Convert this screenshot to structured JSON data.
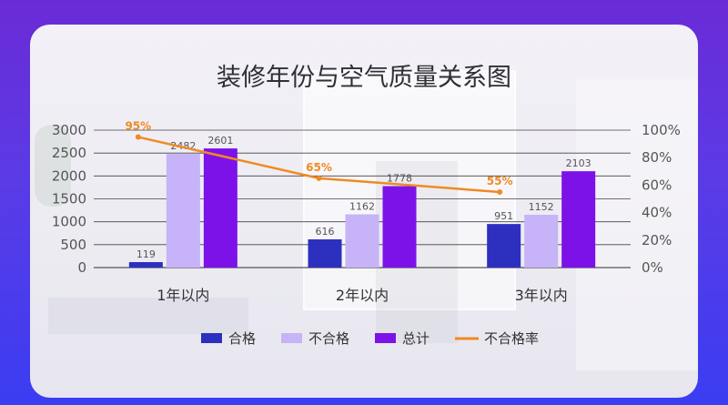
{
  "chart_data": {
    "type": "bar",
    "title": "装修年份与空气质量关系图",
    "categories": [
      "1年以内",
      "2年以内",
      "3年以内"
    ],
    "series": [
      {
        "name": "合格",
        "values": [
          119,
          616,
          951
        ],
        "color": "#2d2fbf"
      },
      {
        "name": "不合格",
        "values": [
          2482,
          1162,
          1152
        ],
        "color": "#c7b3f7"
      },
      {
        "name": "总计",
        "values": [
          2601,
          1778,
          2103
        ],
        "color": "#7d12e8"
      }
    ],
    "line_series": {
      "name": "不合格率",
      "values": [
        95,
        65,
        55
      ],
      "labels": [
        "95%",
        "65%",
        "55%"
      ],
      "color": "#f08a24",
      "axis": "right"
    },
    "ylim": [
      0,
      3000
    ],
    "yticks": [
      "0",
      "500",
      "1000",
      "1500",
      "2000",
      "2500",
      "3000"
    ],
    "y2lim": [
      0,
      100
    ],
    "y2ticks": [
      "0%",
      "20%",
      "40%",
      "60%",
      "80%",
      "100%"
    ],
    "xlabel": "",
    "ylabel": "",
    "legend_position": "bottom",
    "grid": true
  }
}
